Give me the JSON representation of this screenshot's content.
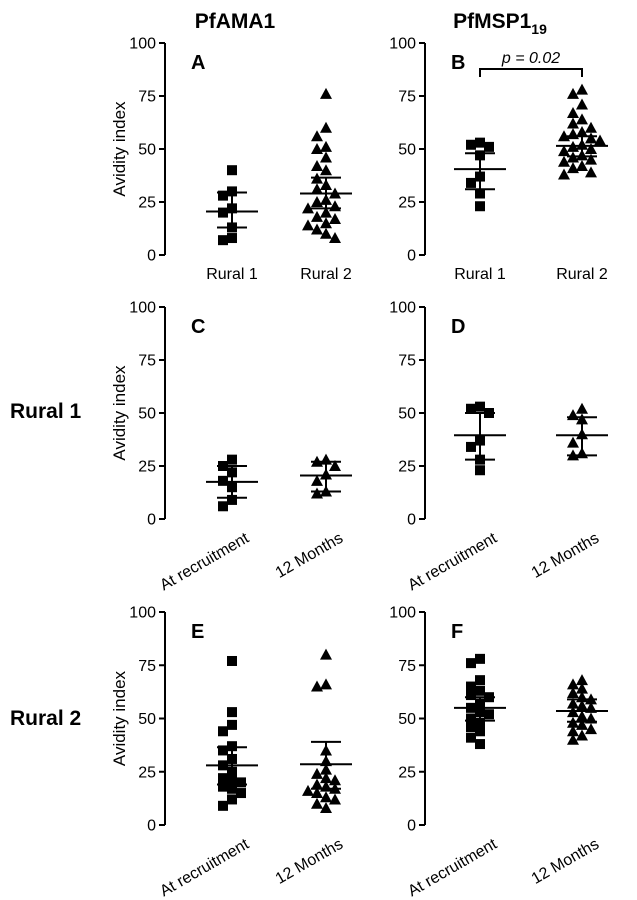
{
  "figure": {
    "columns": [
      {
        "title": "PfAMA1"
      },
      {
        "title": "PfMSP1",
        "subscript": "19"
      }
    ],
    "rows": [
      "Rural 1",
      "Rural 2"
    ]
  },
  "chart_data": [
    {
      "type": "scatter",
      "panel": "A",
      "ylabel": "Avidity index",
      "ylim": [
        0,
        100
      ],
      "yticks": [
        0,
        25,
        50,
        75,
        100
      ],
      "categories": [
        "Rural 1",
        "Rural 2"
      ],
      "series": [
        {
          "category": "Rural 1",
          "marker": "square",
          "values": [
            40,
            30,
            28,
            22,
            20,
            13,
            8,
            7
          ],
          "mean": 20.5,
          "ci": [
            13,
            29.5
          ]
        },
        {
          "category": "Rural 2",
          "marker": "triangle",
          "values": [
            76,
            60,
            56,
            51,
            50,
            46,
            42,
            40,
            36,
            33,
            31,
            29,
            26,
            25,
            23,
            22,
            20,
            18,
            17,
            15,
            14,
            12,
            10,
            8
          ],
          "mean": 29,
          "ci": [
            22,
            36.5
          ]
        }
      ]
    },
    {
      "type": "scatter",
      "panel": "B",
      "ylabel": "",
      "ylim": [
        0,
        100
      ],
      "yticks": [
        0,
        25,
        50,
        75,
        100
      ],
      "categories": [
        "Rural 1",
        "Rural 2"
      ],
      "annotation": "p = 0.02",
      "series": [
        {
          "category": "Rural 1",
          "marker": "square",
          "values": [
            53,
            52,
            51,
            47,
            37,
            34,
            29,
            23
          ],
          "mean": 40.5,
          "ci": [
            31,
            48
          ]
        },
        {
          "category": "Rural 2",
          "marker": "triangle",
          "values": [
            78,
            76,
            71,
            67,
            64,
            62,
            60,
            58,
            57,
            56,
            55,
            54,
            52,
            51,
            50,
            49,
            47,
            46,
            45,
            44,
            42,
            41,
            39,
            38
          ],
          "mean": 51.5,
          "ci": [
            46.5,
            56
          ]
        }
      ]
    },
    {
      "type": "scatter",
      "panel": "C",
      "ylabel": "Avidity index",
      "ylim": [
        0,
        100
      ],
      "yticks": [
        0,
        25,
        50,
        75,
        100
      ],
      "categories": [
        "At recruitment",
        "12 Months"
      ],
      "series": [
        {
          "category": "At recruitment",
          "marker": "square",
          "values": [
            28,
            25,
            22,
            18,
            15,
            9,
            6
          ],
          "mean": 17.5,
          "ci": [
            10,
            25
          ]
        },
        {
          "category": "12 Months",
          "marker": "triangle",
          "values": [
            28,
            27,
            25,
            21,
            18,
            13,
            12
          ],
          "mean": 20.5,
          "ci": [
            13,
            27
          ]
        }
      ]
    },
    {
      "type": "scatter",
      "panel": "D",
      "ylabel": "",
      "ylim": [
        0,
        100
      ],
      "yticks": [
        0,
        25,
        50,
        75,
        100
      ],
      "categories": [
        "At recruitment",
        "12 Months"
      ],
      "series": [
        {
          "category": "At recruitment",
          "marker": "square",
          "values": [
            53,
            52,
            50,
            37,
            34,
            28,
            23
          ],
          "mean": 39.5,
          "ci": [
            28,
            50
          ]
        },
        {
          "category": "12 Months",
          "marker": "triangle",
          "values": [
            52,
            49,
            47,
            40,
            36,
            31,
            30
          ],
          "mean": 39.5,
          "ci": [
            30,
            48
          ]
        }
      ]
    },
    {
      "type": "scatter",
      "panel": "E",
      "ylabel": "Avidity index",
      "ylim": [
        0,
        100
      ],
      "yticks": [
        0,
        25,
        50,
        75,
        100
      ],
      "categories": [
        "At recruitment",
        "12 Months"
      ],
      "series": [
        {
          "category": "At recruitment",
          "marker": "square",
          "values": [
            77,
            53,
            47,
            44,
            37,
            35,
            31,
            28,
            25,
            22,
            21,
            20,
            18,
            17,
            15,
            12,
            9
          ],
          "mean": 28,
          "ci": [
            19,
            36.5
          ]
        },
        {
          "category": "12 Months",
          "marker": "triangle",
          "values": [
            80,
            66,
            65,
            35,
            30,
            26,
            24,
            22,
            21,
            19,
            18,
            17,
            16,
            15,
            13,
            12,
            10,
            8
          ],
          "mean": 28.5,
          "ci": [
            17,
            39
          ]
        }
      ]
    },
    {
      "type": "scatter",
      "panel": "F",
      "ylabel": "",
      "ylim": [
        0,
        100
      ],
      "yticks": [
        0,
        25,
        50,
        75,
        100
      ],
      "categories": [
        "At recruitment",
        "12 Months"
      ],
      "series": [
        {
          "category": "At recruitment",
          "marker": "square",
          "values": [
            78,
            76,
            68,
            65,
            63,
            61,
            60,
            57,
            55,
            53,
            52,
            50,
            48,
            46,
            44,
            41,
            38
          ],
          "mean": 55,
          "ci": [
            49,
            60
          ]
        },
        {
          "category": "12 Months",
          "marker": "triangle",
          "values": [
            68,
            66,
            64,
            62,
            60,
            59,
            57,
            56,
            55,
            53,
            51,
            50,
            48,
            47,
            45,
            44,
            42,
            40
          ],
          "mean": 53.5,
          "ci": [
            48.5,
            59
          ]
        }
      ]
    }
  ]
}
